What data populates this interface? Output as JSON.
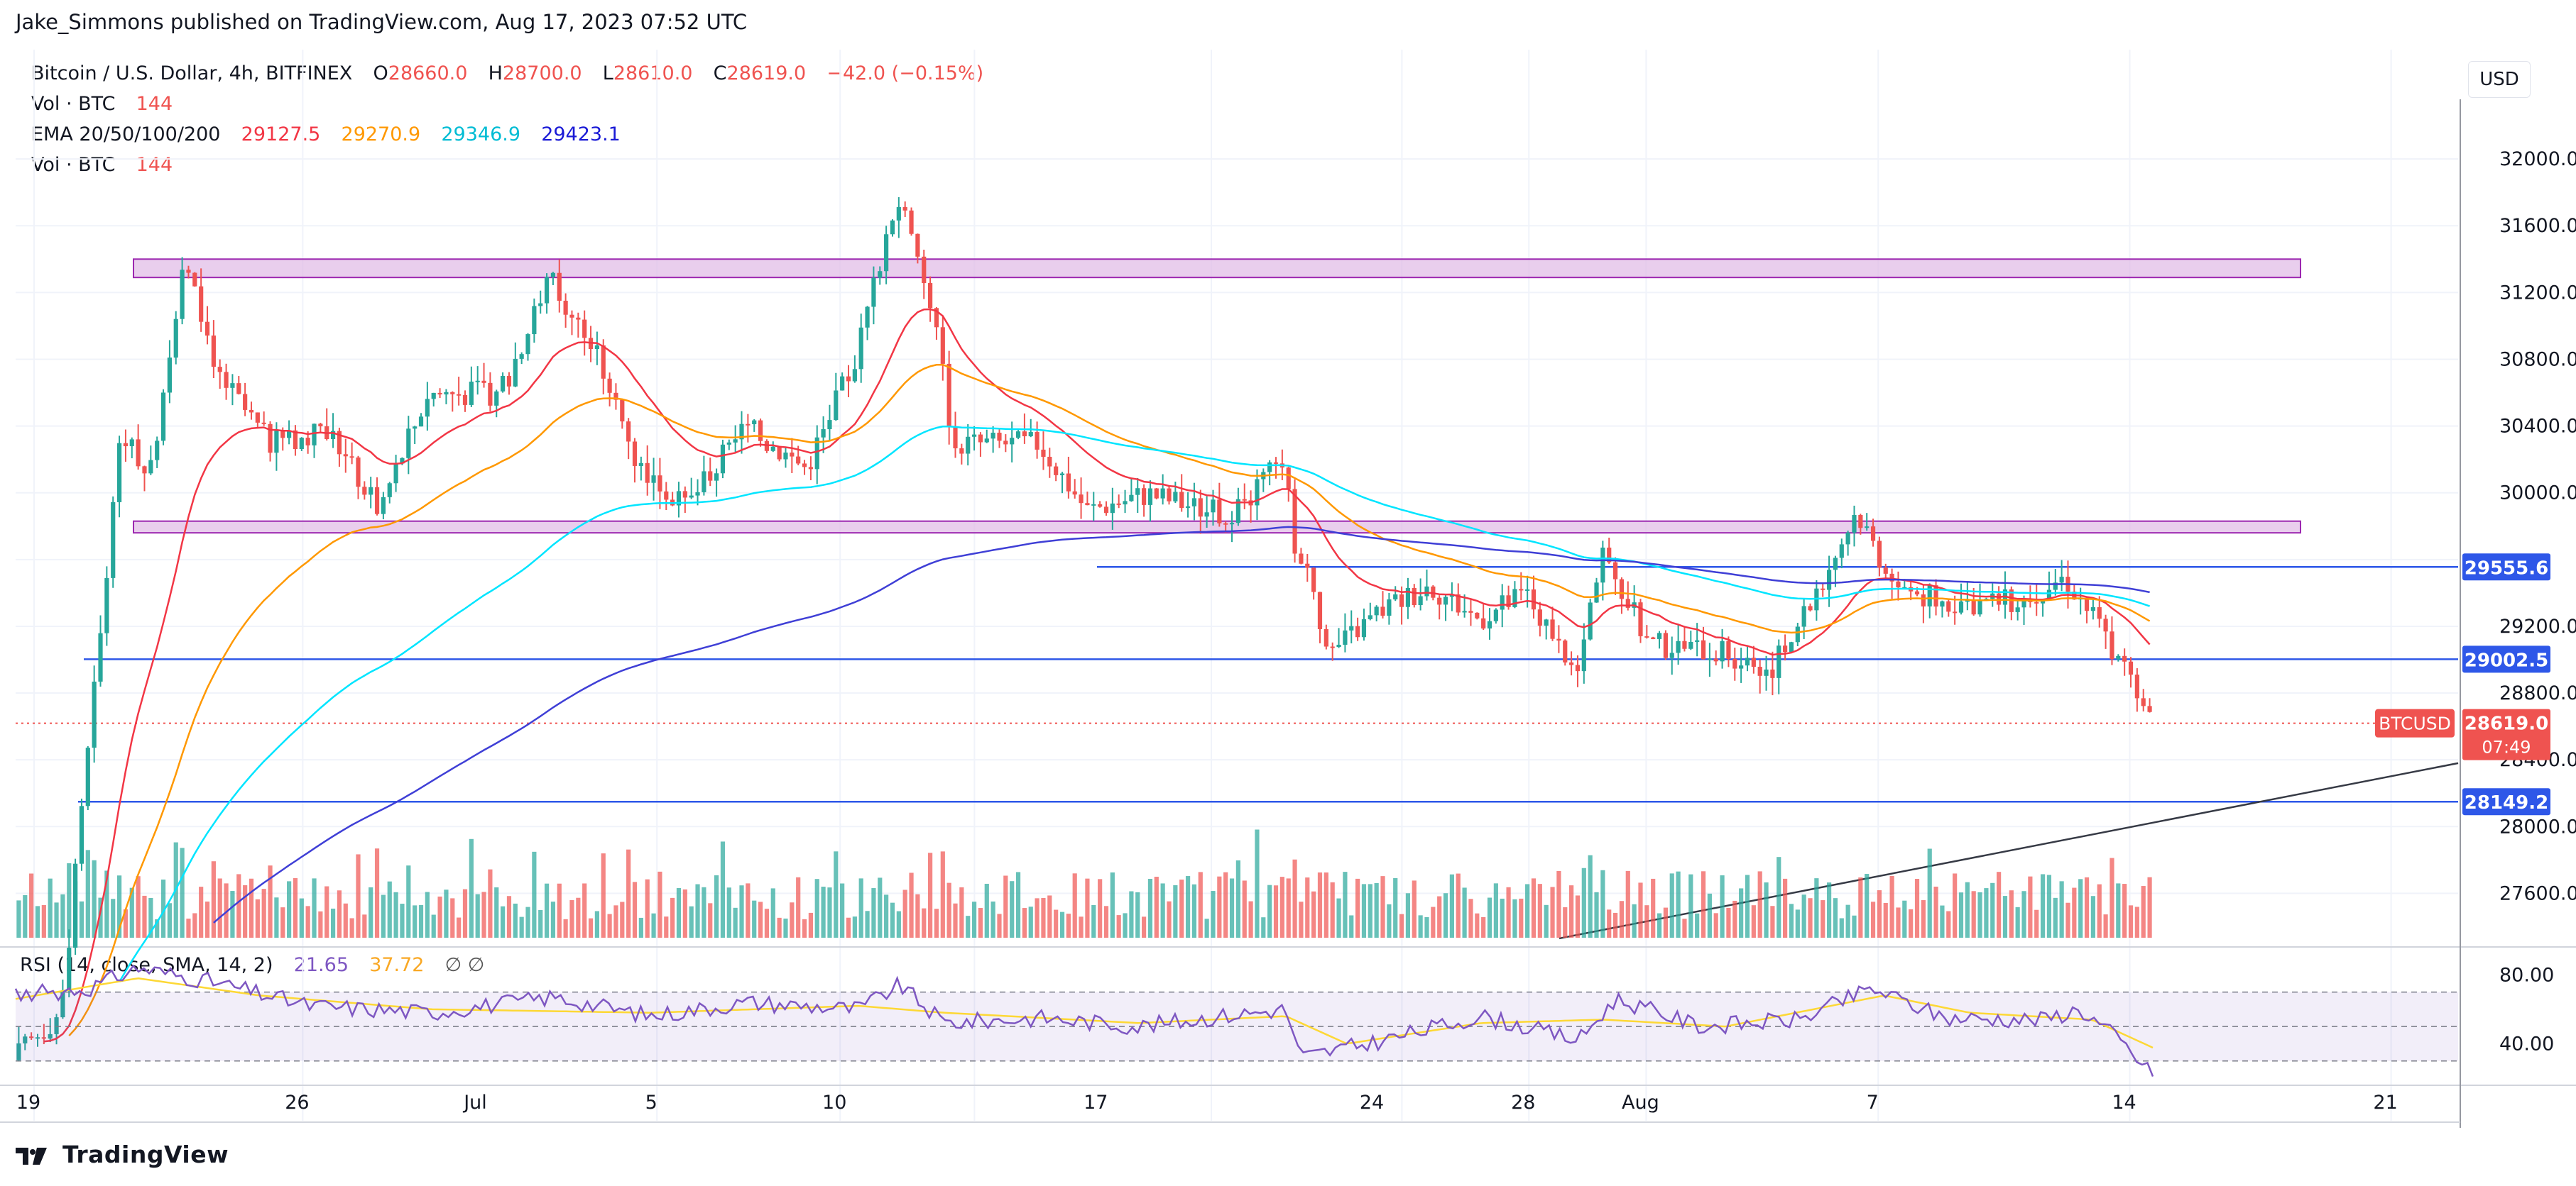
{
  "publisher": "Jake_Simmons published on TradingView.com, Aug 17, 2023 07:52 UTC",
  "brand": "TradingView",
  "currency_button": "USD",
  "legend": {
    "symbol": "Bitcoin / U.S. Dollar, 4h, BITFINEX",
    "ohlc": [
      {
        "k": "O",
        "v": "28660.0"
      },
      {
        "k": "H",
        "v": "28700.0"
      },
      {
        "k": "L",
        "v": "28610.0"
      },
      {
        "k": "C",
        "v": "28619.0"
      }
    ],
    "change": "−42.0 (−0.15%)",
    "vol_label": "Vol · BTC",
    "vol_value": "144",
    "ema_label": "EMA 20/50/100/200",
    "ema_values": [
      "29127.5",
      "29270.9",
      "29346.9",
      "29423.1"
    ],
    "vol2_label": "Vol · BTC",
    "vol2_value": "144"
  },
  "rsi_legend": {
    "label": "RSI (14, close, SMA, 14, 2)",
    "rsi": "21.65",
    "sma": "37.72",
    "sym": "∅ ∅"
  },
  "colors": {
    "up": "#26a69a",
    "down": "#ef5350",
    "ema20": "#f23645",
    "ema50": "#ff9800",
    "ema100": "#00e5ff",
    "ema200": "#3f3fd6",
    "hline": "#2e57e8",
    "zone_fill": "#e1bee7",
    "zone_stroke": "#9c27b0",
    "rsi_line": "#7e57c2",
    "rsi_sma": "#fdd835"
  },
  "chart_data": {
    "type": "candlestick",
    "symbol": "BTCUSD",
    "interval": "4h",
    "x_ticks": [
      "19",
      "26",
      "Jul",
      "5",
      "10",
      "17",
      "24",
      "28",
      "Aug",
      "7",
      "14",
      "21"
    ],
    "y_ticks": [
      "32000.0",
      "31600.0",
      "31200.0",
      "30800.0",
      "30400.0",
      "30000.0",
      "29200.0",
      "28800.0",
      "28400.0",
      "28000.0",
      "27600.0"
    ],
    "ylim": [
      27300,
      32400
    ],
    "price_labels": [
      {
        "text": "29555.6",
        "value": 29555.6
      },
      {
        "text": "29002.5",
        "value": 29002.5
      },
      {
        "text": "28149.2",
        "value": 28149.2
      }
    ],
    "current": {
      "tag": "BTCUSD",
      "price": "28619.0",
      "countdown": "07:49",
      "value": 28619
    },
    "horizontal_levels": [
      29555.6,
      29002.5,
      28149.2
    ],
    "zones": [
      {
        "low": 31290,
        "high": 31400
      },
      {
        "low": 29760,
        "high": 29830
      }
    ],
    "trendline": {
      "from": [
        0.632,
        27330
      ],
      "to": [
        0.965,
        28380
      ]
    },
    "price_keypoints": [
      [
        0.0,
        26600
      ],
      [
        0.02,
        26900
      ],
      [
        0.032,
        28600
      ],
      [
        0.045,
        30400
      ],
      [
        0.055,
        30000
      ],
      [
        0.07,
        31400
      ],
      [
        0.085,
        30700
      ],
      [
        0.105,
        30300
      ],
      [
        0.13,
        30350
      ],
      [
        0.15,
        29900
      ],
      [
        0.17,
        30600
      ],
      [
        0.2,
        30600
      ],
      [
        0.22,
        31300
      ],
      [
        0.24,
        30800
      ],
      [
        0.255,
        30200
      ],
      [
        0.275,
        29900
      ],
      [
        0.3,
        30400
      ],
      [
        0.325,
        30150
      ],
      [
        0.345,
        30800
      ],
      [
        0.362,
        31800
      ],
      [
        0.378,
        31000
      ],
      [
        0.385,
        30300
      ],
      [
        0.42,
        30300
      ],
      [
        0.44,
        29900
      ],
      [
        0.465,
        30000
      ],
      [
        0.5,
        29850
      ],
      [
        0.52,
        30200
      ],
      [
        0.525,
        29700
      ],
      [
        0.54,
        29050
      ],
      [
        0.56,
        29300
      ],
      [
        0.58,
        29450
      ],
      [
        0.6,
        29250
      ],
      [
        0.62,
        29400
      ],
      [
        0.64,
        28850
      ],
      [
        0.65,
        29650
      ],
      [
        0.67,
        29100
      ],
      [
        0.7,
        29050
      ],
      [
        0.72,
        28950
      ],
      [
        0.735,
        29300
      ],
      [
        0.755,
        29900
      ],
      [
        0.77,
        29450
      ],
      [
        0.79,
        29350
      ],
      [
        0.82,
        29350
      ],
      [
        0.84,
        29500
      ],
      [
        0.855,
        29200
      ],
      [
        0.87,
        28750
      ],
      [
        0.875,
        28619
      ]
    ],
    "rsi_ylim": [
      20,
      90
    ],
    "rsi_ticks": [
      "80.00",
      "40.00"
    ],
    "rsi_band": [
      30,
      70
    ],
    "rsi_keypoints": [
      [
        0.0,
        68
      ],
      [
        0.03,
        72
      ],
      [
        0.05,
        84
      ],
      [
        0.08,
        76
      ],
      [
        0.12,
        62
      ],
      [
        0.17,
        58
      ],
      [
        0.22,
        67
      ],
      [
        0.26,
        56
      ],
      [
        0.3,
        64
      ],
      [
        0.345,
        60
      ],
      [
        0.362,
        74
      ],
      [
        0.38,
        52
      ],
      [
        0.42,
        55
      ],
      [
        0.46,
        50
      ],
      [
        0.5,
        57
      ],
      [
        0.52,
        60
      ],
      [
        0.526,
        32
      ],
      [
        0.56,
        42
      ],
      [
        0.6,
        56
      ],
      [
        0.64,
        42
      ],
      [
        0.655,
        66
      ],
      [
        0.69,
        50
      ],
      [
        0.73,
        54
      ],
      [
        0.76,
        72
      ],
      [
        0.79,
        55
      ],
      [
        0.83,
        54
      ],
      [
        0.845,
        60
      ],
      [
        0.86,
        44
      ],
      [
        0.875,
        21.65
      ]
    ],
    "rsi_sma_keypoints": [
      [
        0.0,
        66
      ],
      [
        0.05,
        78
      ],
      [
        0.1,
        68
      ],
      [
        0.17,
        60
      ],
      [
        0.26,
        58
      ],
      [
        0.345,
        62
      ],
      [
        0.38,
        58
      ],
      [
        0.46,
        52
      ],
      [
        0.52,
        56
      ],
      [
        0.545,
        40
      ],
      [
        0.6,
        52
      ],
      [
        0.65,
        54
      ],
      [
        0.7,
        50
      ],
      [
        0.765,
        68
      ],
      [
        0.8,
        58
      ],
      [
        0.85,
        54
      ],
      [
        0.875,
        37.72
      ]
    ]
  }
}
